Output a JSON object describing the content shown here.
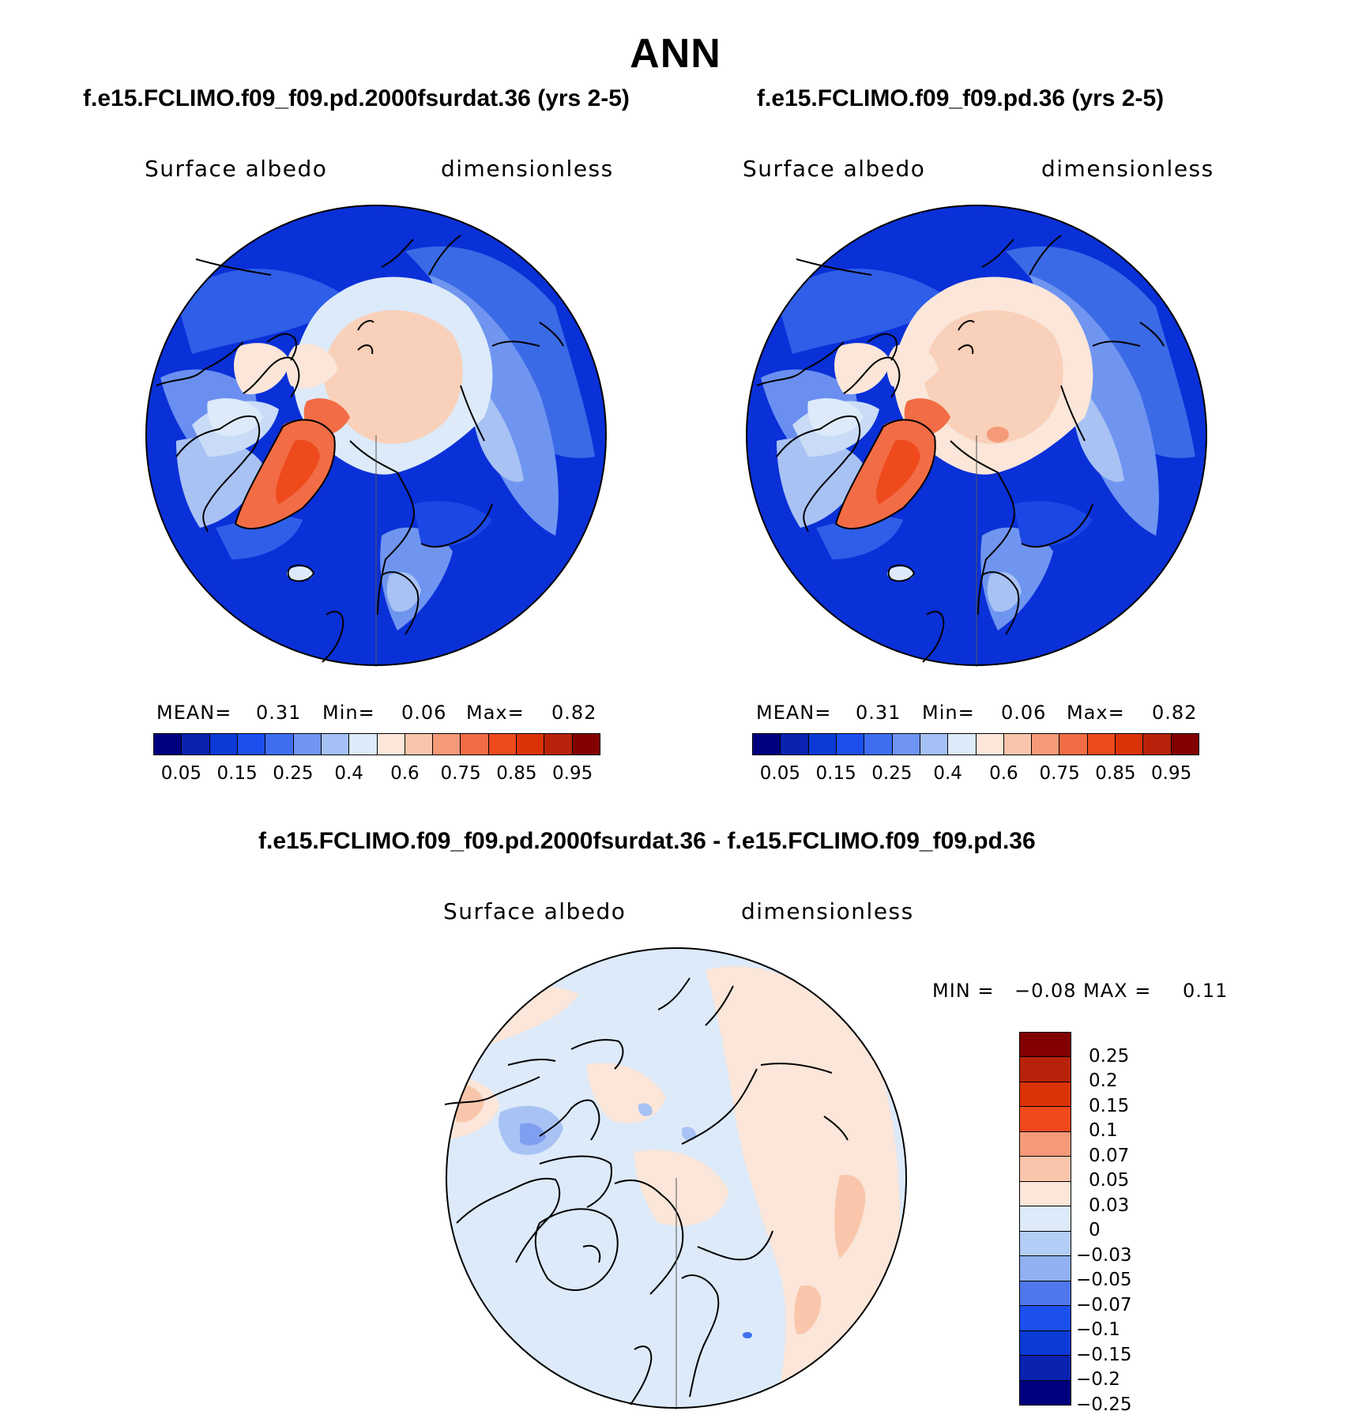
{
  "page_title": "ANN",
  "panels": [
    {
      "case_title": "f.e15.FCLIMO.f09_f09.pd.2000fsurdat.36 (yrs 2-5)",
      "variable": "Surface albedo",
      "units": "dimensionless",
      "mean_label": "MEAN=",
      "mean_value": "0.31",
      "min_label": "Min=",
      "min_value": "0.06",
      "max_label": "Max=",
      "max_value": "0.82"
    },
    {
      "case_title": "f.e15.FCLIMO.f09_f09.pd.36 (yrs 2-5)",
      "variable": "Surface albedo",
      "units": "dimensionless",
      "mean_label": "MEAN=",
      "mean_value": "0.31",
      "min_label": "Min=",
      "min_value": "0.06",
      "max_label": "Max=",
      "max_value": "0.82"
    }
  ],
  "diff_panel": {
    "title": "f.e15.FCLIMO.f09_f09.pd.2000fsurdat.36 - f.e15.FCLIMO.f09_f09.pd.36",
    "variable": "Surface albedo",
    "units": "dimensionless",
    "min_label": "MIN =",
    "min_value": "−0.08",
    "max_label": "MAX =",
    "max_value": "0.11"
  },
  "abs_colorbar": {
    "colors": [
      "#00007f",
      "#0a22b0",
      "#0c3ad6",
      "#1c50ee",
      "#3f6ff0",
      "#7094f2",
      "#a5c0f5",
      "#dceaf9",
      "#fbe6d9",
      "#f9c6ac",
      "#f59a78",
      "#f26c45",
      "#ee4a1c",
      "#db3308",
      "#b8220b",
      "#820000"
    ],
    "labels": [
      "0.05",
      "0.15",
      "0.25",
      "0.4",
      "0.6",
      "0.75",
      "0.85",
      "0.95"
    ]
  },
  "diff_colorbar": {
    "colors": [
      "#820000",
      "#b8220b",
      "#db3308",
      "#f04a1c",
      "#f59a78",
      "#f9c6ac",
      "#fbe6d9",
      "#dceaf9",
      "#b3cdf6",
      "#8fb0f1",
      "#4f78ec",
      "#1c50ee",
      "#0c3ad6",
      "#0a22b0",
      "#00007f"
    ],
    "labels": [
      "0.25",
      "0.2",
      "0.15",
      "0.1",
      "0.07",
      "0.05",
      "0.03",
      "0",
      "−0.03",
      "−0.05",
      "−0.07",
      "−0.1",
      "−0.15",
      "−0.2",
      "−0.25"
    ]
  }
}
